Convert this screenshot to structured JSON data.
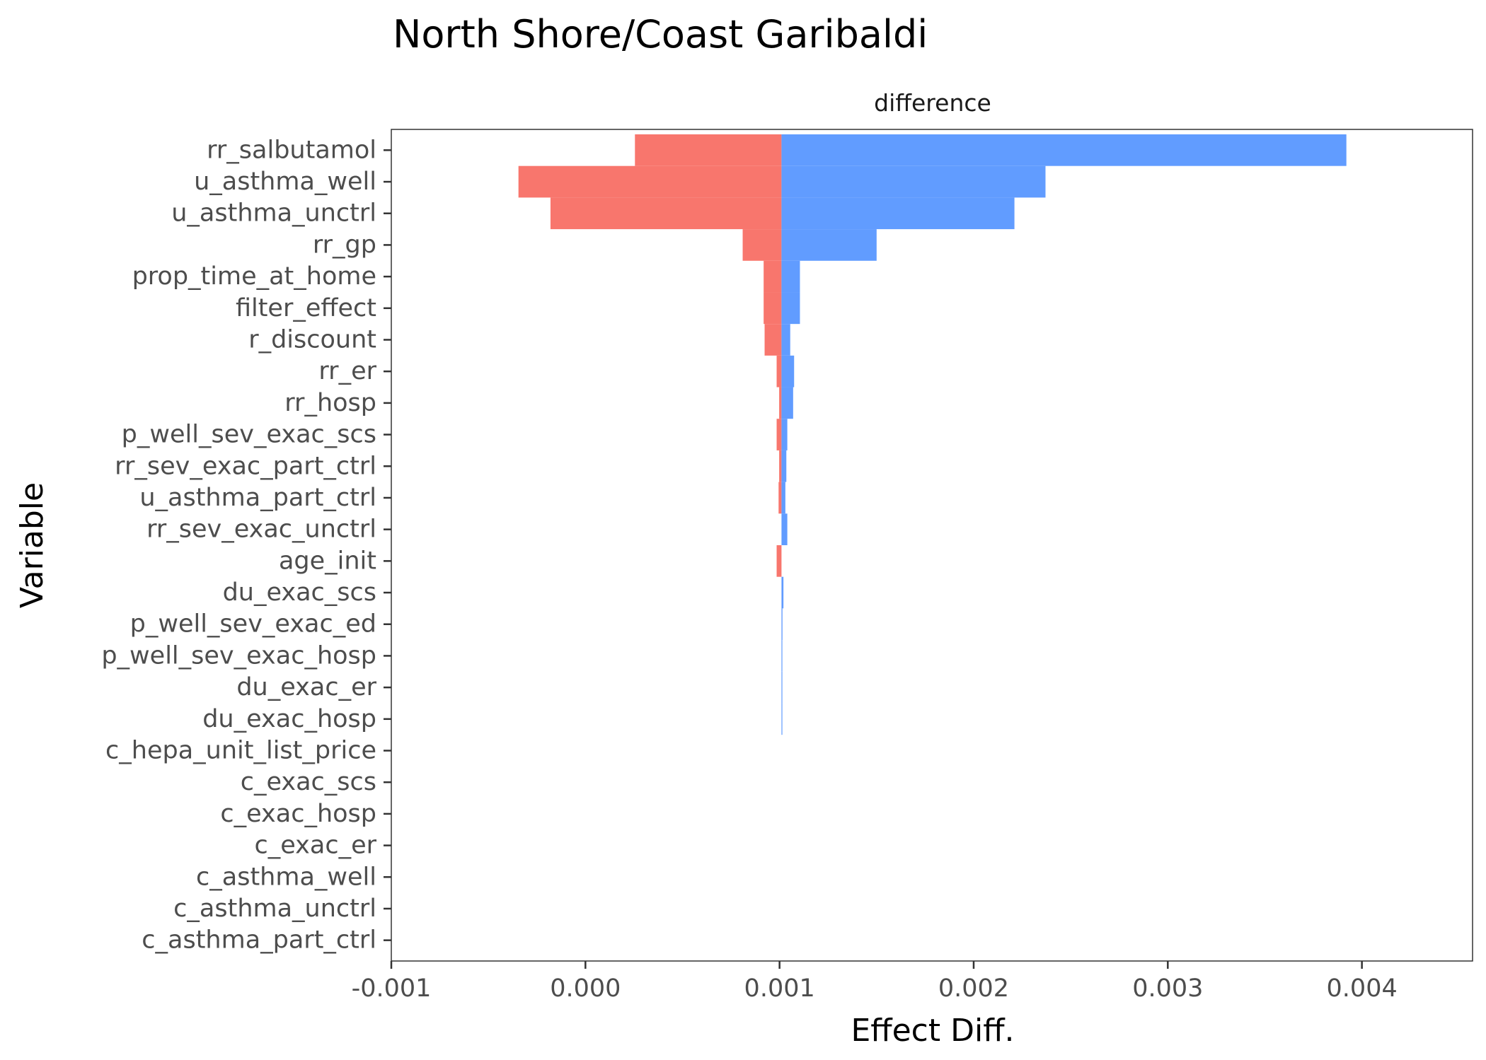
{
  "chart_data": {
    "type": "bar",
    "title": "North Shore/Coast Garibaldi",
    "facet_label": "difference",
    "xlabel": "Effect Diff.",
    "ylabel": "Variable",
    "xlim": [
      -0.001,
      0.00457
    ],
    "x_ticks": [
      -0.001,
      0.0,
      0.001,
      0.002,
      0.003,
      0.004
    ],
    "x_tick_labels": [
      "-0.001",
      "0.000",
      "0.001",
      "0.002",
      "0.003",
      "0.004"
    ],
    "base": 0.00101,
    "grid": false,
    "legend": "none",
    "categories": [
      "rr_salbutamol",
      "u_asthma_well",
      "u_asthma_unctrl",
      "rr_gp",
      "prop_time_at_home",
      "filter_effect",
      "r_discount",
      "rr_er",
      "rr_hosp",
      "p_well_sev_exac_scs",
      "rr_sev_exac_part_ctrl",
      "u_asthma_part_ctrl",
      "rr_sev_exac_unctrl",
      "age_init",
      "du_exac_scs",
      "p_well_sev_exac_ed",
      "p_well_sev_exac_hosp",
      "du_exac_er",
      "du_exac_hosp",
      "c_hepa_unit_list_price",
      "c_exac_scs",
      "c_exac_hosp",
      "c_exac_er",
      "c_asthma_well",
      "c_asthma_unctrl",
      "c_asthma_part_ctrl"
    ],
    "series": [
      {
        "color": "#F8766D",
        "values": [
          0.000255,
          -0.000345,
          -0.00018,
          0.00081,
          0.000918,
          0.000918,
          0.000923,
          0.000985,
          0.000998,
          0.000985,
          0.000998,
          0.000995,
          0.00101,
          0.000985,
          0.00101,
          0.00101,
          0.00101,
          0.00101,
          0.00101,
          0.00101,
          0.00101,
          0.00101,
          0.00101,
          0.00101,
          0.00101,
          0.00101
        ]
      },
      {
        "color": "#619CFF",
        "values": [
          0.00392,
          0.00237,
          0.00221,
          0.0015,
          0.001105,
          0.001105,
          0.001055,
          0.001075,
          0.00107,
          0.00104,
          0.001035,
          0.00103,
          0.00104,
          0.00101,
          0.00102,
          0.001015,
          0.001013,
          0.001012,
          0.001011,
          0.00101,
          0.00101,
          0.00101,
          0.00101,
          0.00101,
          0.00101,
          0.00101
        ]
      }
    ]
  }
}
